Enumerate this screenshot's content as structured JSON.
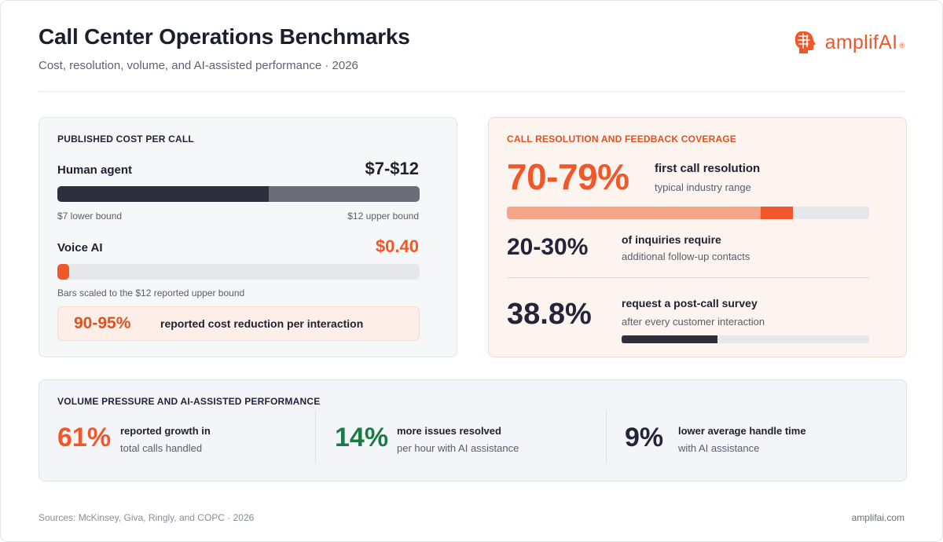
{
  "header": {
    "title": "Call Center Operations Benchmarks",
    "subtitle": "Cost, resolution, volume, and AI-assisted performance · 2026",
    "brand": "amplifAI",
    "brand_mark": "®",
    "logo_icon": "brain-head-icon"
  },
  "colors": {
    "accent": "#f0582a",
    "dark_bar": "#2d2f3d",
    "gray_bar": "#6b6e79",
    "peach": "#f5a58a",
    "green": "#1d7a46",
    "track": "#e6e7eb"
  },
  "cost": {
    "heading": "Published cost per call",
    "human": {
      "label": "Human agent",
      "value": "$7-$12",
      "lower_label": "$7 lower bound",
      "upper_label": "$12 upper bound",
      "lower": 7,
      "upper": 12
    },
    "voice_ai": {
      "label": "Voice AI",
      "value": "$0.40",
      "amount": 0.4
    },
    "scale_note": "Bars scaled to the $12 reported upper bound",
    "scale_max": 12,
    "callout": {
      "value": "90-95%",
      "text": "reported cost reduction per interaction"
    }
  },
  "resolution": {
    "heading": "Call resolution and feedback coverage",
    "fcr": {
      "value": "70-79%",
      "label": "first call resolution",
      "sub": "typical industry range",
      "low": 0.7,
      "high": 0.79
    },
    "followup": {
      "value": "20-30%",
      "label": "of inquiries require",
      "sub": "additional follow-up contacts"
    },
    "survey": {
      "value": "38.8%",
      "label": "request a post-call survey",
      "sub": "after every customer interaction",
      "fraction": 0.388
    }
  },
  "volume": {
    "heading": "Volume pressure and AI-assisted performance",
    "stats": [
      {
        "value": "61%",
        "label": "reported growth in",
        "sub": "total calls handled"
      },
      {
        "value": "14%",
        "label": "more issues resolved",
        "sub": "per hour with AI assistance"
      },
      {
        "value": "9%",
        "label": "lower average handle time",
        "sub": "with AI assistance"
      }
    ]
  },
  "footer": {
    "sources": "Sources: McKinsey, Giva, Ringly, and COPC · 2026",
    "site": "amplifai.com"
  }
}
